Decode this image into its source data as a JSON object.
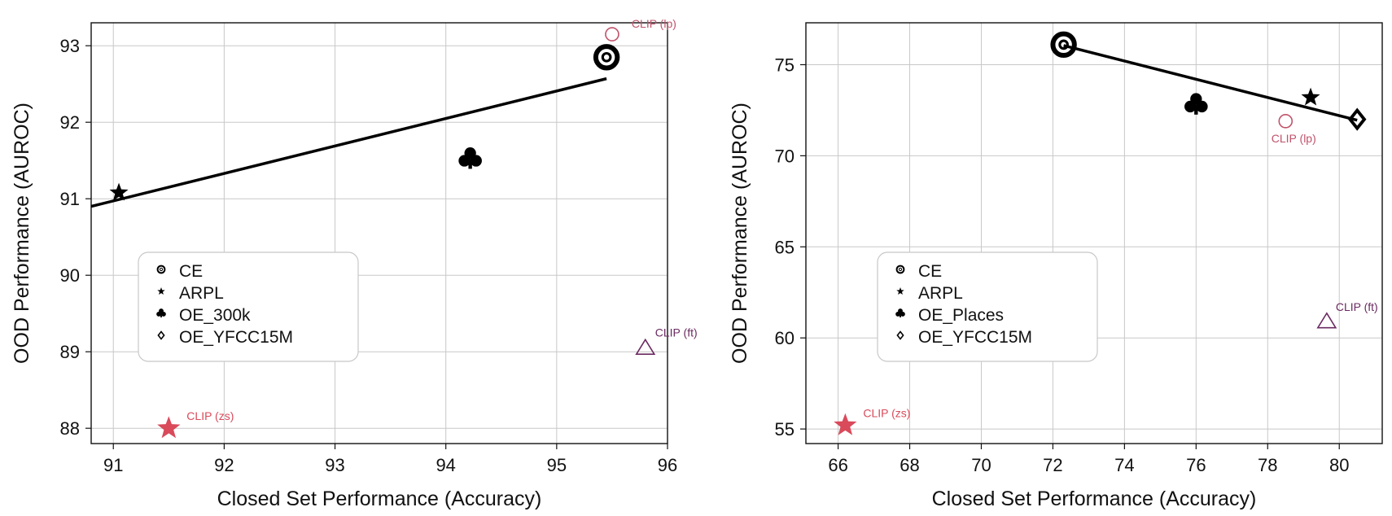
{
  "chart_data": [
    {
      "type": "scatter",
      "xlabel": "Closed Set Performance (Accuracy)",
      "ylabel": "OOD Performance (AUROC)",
      "xlim": [
        90.8,
        96.0
      ],
      "ylim": [
        87.8,
        93.3
      ],
      "xticks": [
        "91",
        "92",
        "93",
        "94",
        "95",
        "96"
      ],
      "yticks": [
        "88",
        "89",
        "90",
        "91",
        "92",
        "93"
      ],
      "grid": true,
      "legend_position": "center-left",
      "legend": [
        {
          "label": "CE",
          "marker": "target"
        },
        {
          "label": "ARPL",
          "marker": "star"
        },
        {
          "label": "OE_300k",
          "marker": "club"
        },
        {
          "label": "OE_YFCC15M",
          "marker": "diamond"
        }
      ],
      "points": [
        {
          "method": "CE",
          "x": 95.45,
          "y": 92.85,
          "marker": "target",
          "color": "#000000"
        },
        {
          "method": "ARPL",
          "x": 91.05,
          "y": 91.08,
          "marker": "star",
          "color": "#000000"
        },
        {
          "method": "OE_300k",
          "x": 94.22,
          "y": 91.52,
          "marker": "club",
          "color": "#000000"
        }
      ],
      "trend_line": {
        "x": [
          90.8,
          95.45
        ],
        "y": [
          90.9,
          92.57
        ],
        "color": "#000000"
      },
      "clip_points": [
        {
          "label": "CLIP (lp)",
          "x": 95.5,
          "y": 93.15,
          "marker": "circle",
          "color": "#c0536b"
        },
        {
          "label": "CLIP (ft)",
          "x": 95.8,
          "y": 89.05,
          "marker": "triangle",
          "color": "#6b2a62"
        },
        {
          "label": "CLIP (zs)",
          "x": 91.5,
          "y": 88.0,
          "marker": "star",
          "color": "#d94a5a"
        }
      ]
    },
    {
      "type": "scatter",
      "xlabel": "Closed Set Performance (Accuracy)",
      "ylabel": "OOD Performance (AUROC)",
      "xlim": [
        65.1,
        81.2
      ],
      "ylim": [
        54.2,
        77.3
      ],
      "xticks": [
        "66",
        "68",
        "70",
        "72",
        "74",
        "76",
        "78",
        "80"
      ],
      "yticks": [
        "55",
        "60",
        "65",
        "70",
        "75"
      ],
      "grid": true,
      "legend_position": "center-left",
      "legend": [
        {
          "label": "CE",
          "marker": "target"
        },
        {
          "label": "ARPL",
          "marker": "star"
        },
        {
          "label": "OE_Places",
          "marker": "club"
        },
        {
          "label": "OE_YFCC15M",
          "marker": "diamond"
        }
      ],
      "points": [
        {
          "method": "CE",
          "x": 72.3,
          "y": 76.1,
          "marker": "target",
          "color": "#000000"
        },
        {
          "method": "ARPL",
          "x": 79.2,
          "y": 73.2,
          "marker": "star",
          "color": "#000000"
        },
        {
          "method": "OE_Places",
          "x": 76.0,
          "y": 72.8,
          "marker": "club",
          "color": "#000000"
        },
        {
          "method": "OE_YFCC15M",
          "x": 80.5,
          "y": 72.0,
          "marker": "diamond",
          "color": "#000000"
        }
      ],
      "trend_line": {
        "x": [
          72.3,
          80.5
        ],
        "y": [
          76.05,
          71.95
        ],
        "color": "#000000"
      },
      "clip_points": [
        {
          "label": "CLIP (lp)",
          "x": 78.5,
          "y": 71.9,
          "marker": "circle",
          "color": "#c0536b"
        },
        {
          "label": "CLIP (ft)",
          "x": 79.65,
          "y": 60.9,
          "marker": "triangle",
          "color": "#6b2a62"
        },
        {
          "label": "CLIP (zs)",
          "x": 66.2,
          "y": 55.2,
          "marker": "star",
          "color": "#d94a5a"
        }
      ]
    }
  ]
}
